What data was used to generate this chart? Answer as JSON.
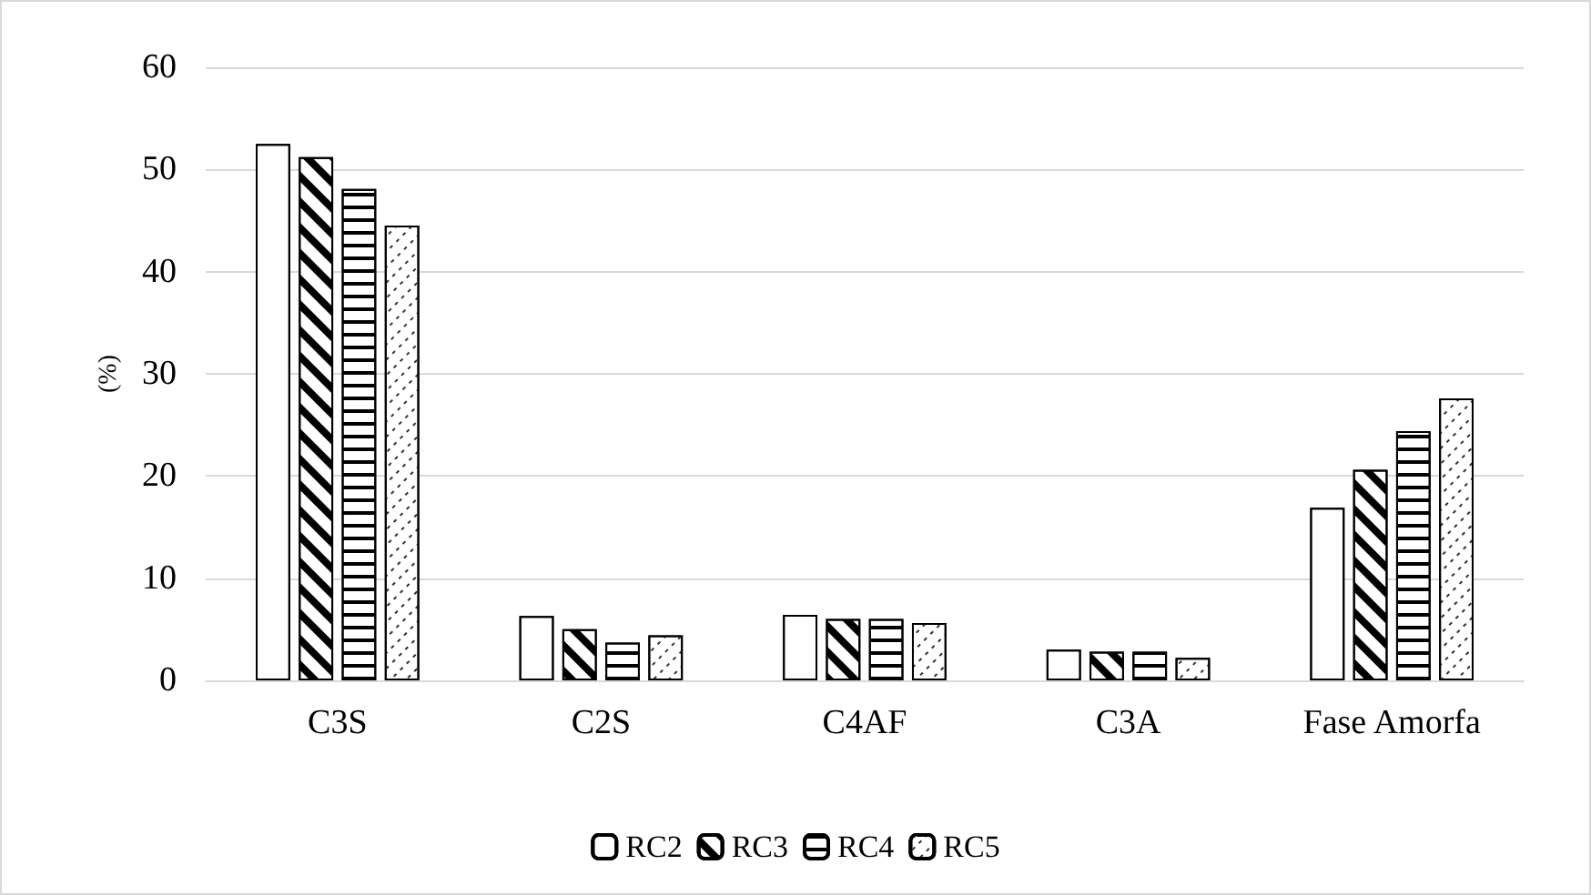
{
  "chart_data": {
    "type": "bar",
    "ylabel": "(%)",
    "categories": [
      "C3S",
      "C2S",
      "C4AF",
      "C3A",
      "Fase Amorfa"
    ],
    "series": [
      {
        "name": "RC2",
        "color": "#ffffff",
        "values": [
          52.5,
          6.3,
          6.4,
          3.0,
          16.9
        ]
      },
      {
        "name": "RC3",
        "color": "#ffffff",
        "values": [
          51.2,
          5.0,
          6.0,
          2.8,
          20.6
        ]
      },
      {
        "name": "RC4",
        "color": "#ffffff",
        "values": [
          48.1,
          3.7,
          6.0,
          2.8,
          24.4
        ]
      },
      {
        "name": "RC5",
        "color": "#ffffff",
        "values": [
          44.5,
          4.4,
          5.6,
          2.2,
          27.6
        ]
      }
    ],
    "ylim": [
      0,
      60
    ],
    "yticks": [
      0,
      10,
      20,
      30,
      40,
      50,
      60
    ],
    "grid": "y",
    "legend": "bottom"
  }
}
